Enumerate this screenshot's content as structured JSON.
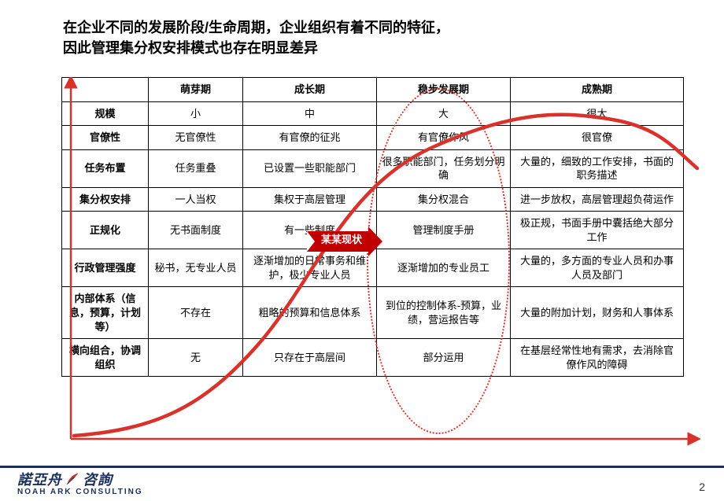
{
  "title_line1": "在企业不同的发展阶段/生命周期，企业组织有着不同的特征，",
  "title_line2": "因此管理集分权安排模式也存在明显差异",
  "table": {
    "columns": [
      "",
      "萌芽期",
      "成长期",
      "稳步发展期",
      "成熟期"
    ],
    "rows": [
      {
        "hdr": "规模",
        "cells": [
          "小",
          "中",
          "大",
          "很大"
        ]
      },
      {
        "hdr": "官僚性",
        "cells": [
          "无官僚性",
          "有官僚的征兆",
          "有官僚作风",
          "很官僚"
        ]
      },
      {
        "hdr": "任务布置",
        "cells": [
          "任务重叠",
          "已设置一些职能部门",
          "很多职能部门，任务划分明确",
          "大量的，细致的工作安排，书面的职务描述"
        ]
      },
      {
        "hdr": "集分权安排",
        "cells": [
          "一人当权",
          "集权于高层管理",
          "集分权混合",
          "进一步放权，高层管理超负荷运作"
        ]
      },
      {
        "hdr": "正规化",
        "cells": [
          "无书面制度",
          "有一些制度",
          "管理制度手册",
          "极正规，书面手册中囊括绝大部分工作"
        ]
      },
      {
        "hdr": "行政管理强度",
        "cells": [
          "秘书，无专业人员",
          "逐渐增加的日常事务和维护，极少专业人员",
          "逐渐增加的专业员工",
          "大量的，多方面的专业人员和办事人员及部门"
        ]
      },
      {
        "hdr": "内部体系（信息，预算，计划等）",
        "cells": [
          "不存在",
          "粗略的预算和信息体系",
          "到位的控制体系-预算，业绩，营运报告等",
          "大量的附加计划，财务和人事体系"
        ]
      },
      {
        "hdr": "横向组合，协调组织",
        "cells": [
          "无",
          "只存在于高层间",
          "部分运用",
          "在基层经常性地有需求，去消除官僚作风的障碍"
        ]
      }
    ]
  },
  "callout_label": "某某现状",
  "highlight_col_index": 3,
  "curve": {
    "color": "#d8322a",
    "stroke_width": 4,
    "ellipse_border": "2px dotted #d8322a"
  },
  "axes": {
    "color": "#d8322a",
    "stroke_width": 2
  },
  "logo": {
    "cn_left": "諾亞舟",
    "cn_right": "咨詢",
    "en": "NOAH  ARK  CONSULTING"
  },
  "page_number": "2",
  "footer_bar_color": "#1b2f5a"
}
